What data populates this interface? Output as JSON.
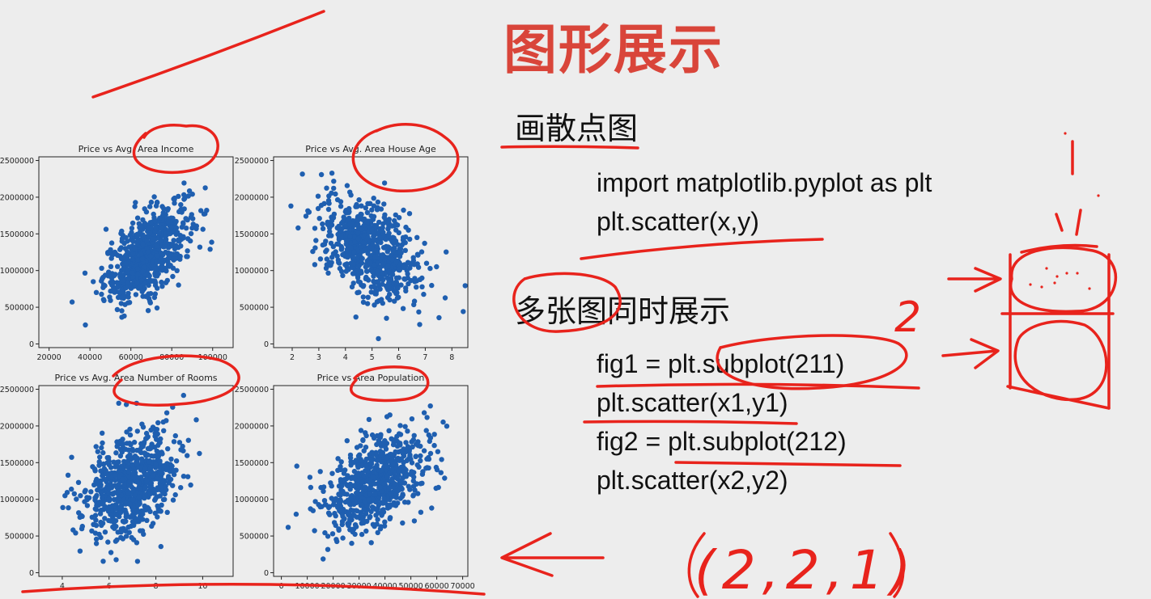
{
  "slide": {
    "title": "图形展示",
    "section1_heading": "画散点图",
    "section2_heading": "多张图同时展示",
    "code_block_1": [
      "import matplotlib.pyplot as plt",
      "plt.scatter(x,y)"
    ],
    "code_block_2": [
      "fig1 = plt.subplot(211)",
      "plt.scatter(x1,y1)",
      "fig2 = plt.subplot(212)",
      "plt.scatter(x2,y2)"
    ]
  },
  "annotations": {
    "handwriting_2": "2",
    "handwriting_221": "(2,2,1)",
    "ink_color": "#e8231c"
  },
  "colors": {
    "points": "#1f5fb0",
    "title": "#d9453a"
  },
  "chart_data": [
    {
      "type": "scatter",
      "title": "Price vs Avg. Area Income",
      "xticks": [
        "20000",
        "40000",
        "60000",
        "80000",
        "100000"
      ],
      "yticks": [
        "0",
        "500000",
        "1000000",
        "1500000",
        "2000000",
        "2500000"
      ],
      "xlim": [
        15000,
        110000
      ],
      "ylim": [
        -50000,
        2550000
      ],
      "center": [
        68000,
        1230000
      ],
      "spread": [
        10500,
        350000
      ],
      "correlation": 0.62,
      "n": 700
    },
    {
      "type": "scatter",
      "title": "Price vs Avg. Area House Age",
      "xticks": [
        "2",
        "3",
        "4",
        "5",
        "6",
        "7",
        "8"
      ],
      "yticks": [
        "0",
        "500000",
        "1000000",
        "1500000",
        "2000000",
        "2500000"
      ],
      "xlim": [
        1.3,
        8.6
      ],
      "ylim": [
        -50000,
        2550000
      ],
      "center": [
        4.9,
        1280000
      ],
      "spread": [
        0.95,
        360000
      ],
      "correlation": -0.5,
      "n": 700
    },
    {
      "type": "scatter",
      "title": "Price vs Avg. Area Number of Rooms",
      "xticks": [
        "4",
        "6",
        "8",
        "10"
      ],
      "yticks": [
        "0",
        "500000",
        "1000000",
        "1500000",
        "2000000",
        "2500000"
      ],
      "xlim": [
        3.0,
        11.3
      ],
      "ylim": [
        -50000,
        2550000
      ],
      "center": [
        6.95,
        1210000
      ],
      "spread": [
        1.0,
        360000
      ],
      "correlation": 0.35,
      "n": 700
    },
    {
      "type": "scatter",
      "title": "Price vs Area Population",
      "xticks": [
        "0",
        "10000",
        "20000",
        "30000",
        "40000",
        "50000",
        "60000",
        "70000"
      ],
      "yticks": [
        "0",
        "500000",
        "1000000",
        "1500000",
        "2000000",
        "2500000"
      ],
      "xlim": [
        -3000,
        72000
      ],
      "ylim": [
        -50000,
        2550000
      ],
      "center": [
        36000,
        1230000
      ],
      "spread": [
        10500,
        350000
      ],
      "correlation": 0.45,
      "n": 700
    }
  ]
}
